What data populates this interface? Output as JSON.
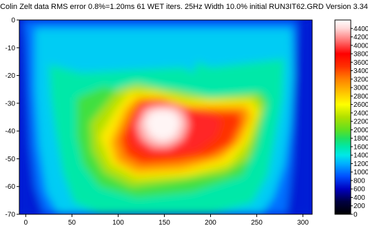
{
  "chart_data": {
    "type": "heatmap",
    "title": "Colin Zelt data RMS error 0.8%=1.20ms 61 WET iters. 25Hz Width 10.0% initial RUN3IT62.GRD Version 3.34",
    "xlabel": "",
    "ylabel": "",
    "xlim": [
      -7,
      310
    ],
    "ylim": [
      -70,
      0
    ],
    "grid": false,
    "x_ticks": [
      "0",
      "50",
      "100",
      "150",
      "200",
      "250",
      "300"
    ],
    "y_ticks": [
      "0",
      "-10",
      "-20",
      "-30",
      "-40",
      "-50",
      "-60",
      "-70"
    ],
    "colorbar": {
      "min": 0,
      "max": 4600,
      "ticks": [
        "0",
        "200",
        "400",
        "600",
        "800",
        "1000",
        "1200",
        "1400",
        "1600",
        "1800",
        "2000",
        "2200",
        "2400",
        "2600",
        "2800",
        "3000",
        "3200",
        "3400",
        "3600",
        "3800",
        "4000",
        "4200",
        "4400"
      ],
      "stops": [
        {
          "v": 0,
          "c": "#000000"
        },
        {
          "v": 300,
          "c": "#000040"
        },
        {
          "v": 600,
          "c": "#0000c0"
        },
        {
          "v": 900,
          "c": "#0050ff"
        },
        {
          "v": 1200,
          "c": "#00b0ff"
        },
        {
          "v": 1400,
          "c": "#00e8e8"
        },
        {
          "v": 1600,
          "c": "#00e8a8"
        },
        {
          "v": 1800,
          "c": "#20e060"
        },
        {
          "v": 2000,
          "c": "#60e020"
        },
        {
          "v": 2300,
          "c": "#b0e000"
        },
        {
          "v": 2600,
          "c": "#ffff00"
        },
        {
          "v": 2900,
          "c": "#ffc000"
        },
        {
          "v": 3200,
          "c": "#ff8000"
        },
        {
          "v": 3500,
          "c": "#ff3000"
        },
        {
          "v": 3800,
          "c": "#ff0000"
        },
        {
          "v": 4100,
          "c": "#ff7070"
        },
        {
          "v": 4400,
          "c": "#ffd8d8"
        },
        {
          "v": 4600,
          "c": "#ffffff"
        }
      ]
    },
    "contours": [
      {
        "v": 700,
        "pts": [
          [
            -7,
            0
          ],
          [
            310,
            0
          ],
          [
            310,
            -70
          ],
          [
            -7,
            -70
          ]
        ]
      },
      {
        "v": 1000,
        "pts": [
          [
            -3,
            0
          ],
          [
            293,
            0
          ],
          [
            293,
            -5
          ],
          [
            291,
            -20
          ],
          [
            290,
            -38
          ],
          [
            288,
            -52
          ],
          [
            285,
            -62
          ],
          [
            282,
            -70
          ],
          [
            20,
            -70
          ],
          [
            10,
            -60
          ],
          [
            5,
            -45
          ],
          [
            2,
            -25
          ],
          [
            0,
            -8
          ]
        ]
      },
      {
        "v": 1300,
        "pts": [
          [
            10,
            -3
          ],
          [
            288,
            -3
          ],
          [
            290,
            -20
          ],
          [
            286,
            -38
          ],
          [
            280,
            -52
          ],
          [
            268,
            -64
          ],
          [
            255,
            -70
          ],
          [
            35,
            -70
          ],
          [
            22,
            -62
          ],
          [
            14,
            -45
          ],
          [
            10,
            -25
          ]
        ]
      },
      {
        "v": 1600,
        "pts": [
          [
            25,
            -16
          ],
          [
            60,
            -19
          ],
          [
            170,
            -17
          ],
          [
            182,
            -19
          ],
          [
            185,
            -15
          ],
          [
            200,
            -17
          ],
          [
            280,
            -14
          ],
          [
            278,
            -28
          ],
          [
            270,
            -42
          ],
          [
            262,
            -56
          ],
          [
            245,
            -66
          ],
          [
            200,
            -70
          ],
          [
            80,
            -70
          ],
          [
            52,
            -66
          ],
          [
            40,
            -55
          ],
          [
            32,
            -40
          ],
          [
            27,
            -28
          ]
        ]
      },
      {
        "v": 1900,
        "pts": [
          [
            55,
            -28
          ],
          [
            85,
            -24
          ],
          [
            105,
            -26
          ],
          [
            160,
            -25
          ],
          [
            200,
            -28
          ],
          [
            255,
            -26
          ],
          [
            262,
            -29
          ],
          [
            255,
            -38
          ],
          [
            250,
            -46
          ],
          [
            235,
            -56
          ],
          [
            180,
            -62
          ],
          [
            120,
            -64
          ],
          [
            80,
            -60
          ],
          [
            62,
            -52
          ],
          [
            55,
            -42
          ]
        ]
      },
      {
        "v": 2300,
        "pts": [
          [
            70,
            -37
          ],
          [
            100,
            -25
          ],
          [
            120,
            -23
          ],
          [
            150,
            -25
          ],
          [
            200,
            -28
          ],
          [
            250,
            -27
          ],
          [
            258,
            -31
          ],
          [
            250,
            -40
          ],
          [
            240,
            -50
          ],
          [
            215,
            -55
          ],
          [
            160,
            -58
          ],
          [
            115,
            -60
          ],
          [
            85,
            -55
          ],
          [
            72,
            -47
          ]
        ]
      },
      {
        "v": 2700,
        "pts": [
          [
            80,
            -42
          ],
          [
            98,
            -32
          ],
          [
            112,
            -26
          ],
          [
            140,
            -26
          ],
          [
            175,
            -29
          ],
          [
            200,
            -29
          ],
          [
            245,
            -29
          ],
          [
            252,
            -33
          ],
          [
            240,
            -44
          ],
          [
            220,
            -52
          ],
          [
            175,
            -56
          ],
          [
            120,
            -57
          ],
          [
            92,
            -52
          ]
        ]
      },
      {
        "v": 3100,
        "pts": [
          [
            92,
            -44
          ],
          [
            108,
            -32
          ],
          [
            120,
            -28
          ],
          [
            145,
            -28
          ],
          [
            175,
            -31
          ],
          [
            210,
            -31
          ],
          [
            240,
            -31
          ],
          [
            244,
            -35
          ],
          [
            232,
            -44
          ],
          [
            212,
            -50
          ],
          [
            170,
            -54
          ],
          [
            120,
            -55
          ],
          [
            98,
            -51
          ]
        ]
      },
      {
        "v": 3500,
        "pts": [
          [
            102,
            -43
          ],
          [
            115,
            -34
          ],
          [
            125,
            -29
          ],
          [
            150,
            -29
          ],
          [
            175,
            -32
          ],
          [
            210,
            -33
          ],
          [
            232,
            -33
          ],
          [
            234,
            -37
          ],
          [
            222,
            -45
          ],
          [
            200,
            -49
          ],
          [
            165,
            -51
          ],
          [
            125,
            -52
          ],
          [
            108,
            -49
          ]
        ]
      },
      {
        "v": 3900,
        "pts": [
          [
            112,
            -40
          ],
          [
            120,
            -33
          ],
          [
            135,
            -30
          ],
          [
            160,
            -30
          ],
          [
            180,
            -32
          ],
          [
            200,
            -34
          ],
          [
            212,
            -36
          ],
          [
            206,
            -42
          ],
          [
            185,
            -47
          ],
          [
            160,
            -48
          ],
          [
            132,
            -48
          ],
          [
            116,
            -45
          ]
        ]
      },
      {
        "v": 4300,
        "pts": [
          [
            120,
            -38
          ],
          [
            128,
            -32
          ],
          [
            140,
            -31
          ],
          [
            160,
            -31
          ],
          [
            172,
            -33
          ],
          [
            176,
            -38
          ],
          [
            170,
            -43
          ],
          [
            155,
            -46
          ],
          [
            138,
            -46
          ],
          [
            125,
            -43
          ]
        ]
      },
      {
        "v": 4550,
        "pts": [
          [
            128,
            -37
          ],
          [
            135,
            -33
          ],
          [
            148,
            -32
          ],
          [
            162,
            -33
          ],
          [
            168,
            -37
          ],
          [
            162,
            -42
          ],
          [
            148,
            -44
          ],
          [
            135,
            -42
          ]
        ]
      }
    ]
  }
}
